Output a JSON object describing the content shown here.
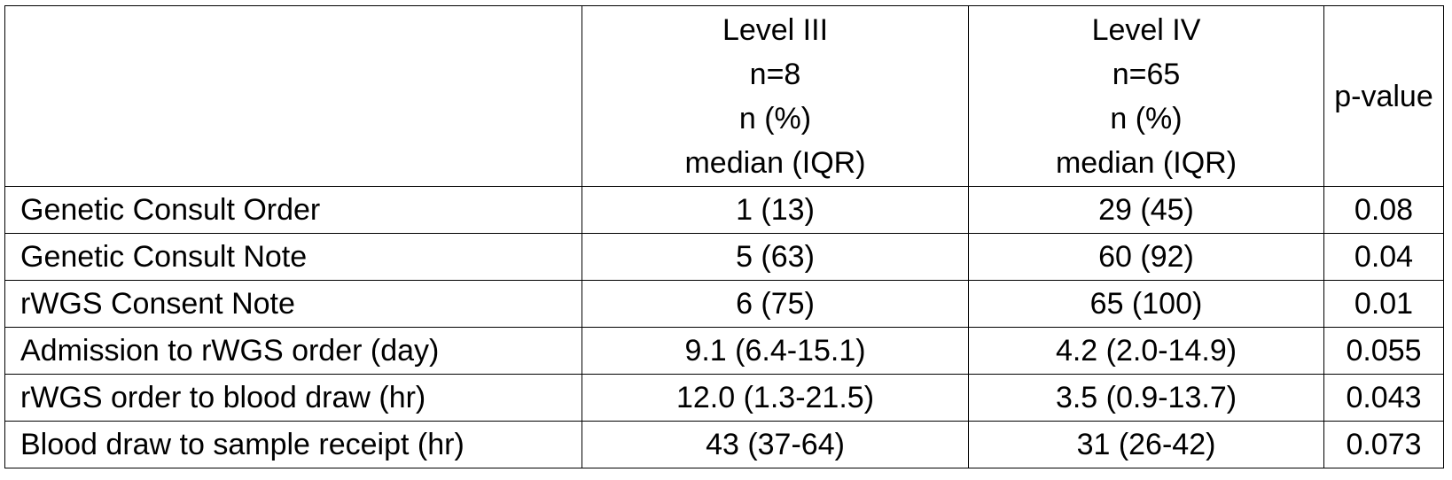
{
  "table": {
    "header": {
      "blank": "",
      "columns": [
        {
          "lines": [
            "Level III",
            "n=8",
            "n (%)",
            "median (IQR)"
          ]
        },
        {
          "lines": [
            "Level IV",
            "n=65",
            "n (%)",
            "median (IQR)"
          ]
        }
      ],
      "pvalue": "p-value"
    },
    "rows": [
      {
        "label": "Genetic Consult Order",
        "level3": "1 (13)",
        "level4": "29 (45)",
        "pvalue": "0.08"
      },
      {
        "label": "Genetic Consult Note",
        "level3": "5 (63)",
        "level4": "60 (92)",
        "pvalue": "0.04"
      },
      {
        "label": "rWGS Consent Note",
        "level3": "6 (75)",
        "level4": "65 (100)",
        "pvalue": "0.01"
      },
      {
        "label": "Admission to rWGS order (day)",
        "level3": "9.1 (6.4-15.1)",
        "level4": "4.2 (2.0-14.9)",
        "pvalue": "0.055"
      },
      {
        "label": "rWGS order to blood draw (hr)",
        "level3": "12.0 (1.3-21.5)",
        "level4": "3.5 (0.9-13.7)",
        "pvalue": "0.043"
      },
      {
        "label": "Blood draw to sample receipt (hr)",
        "level3": "43 (37-64)",
        "level4": "31 (26-42)",
        "pvalue": "0.073"
      }
    ]
  }
}
